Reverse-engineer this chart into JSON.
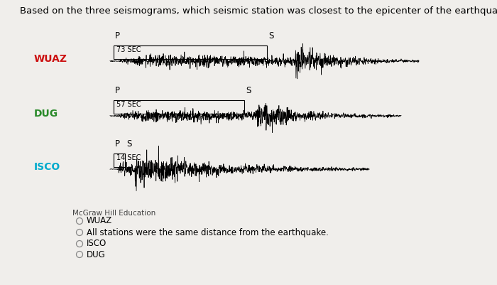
{
  "title": "Based on the three seismograms, which seismic station was closest to the epicenter of the earthquake?",
  "title_fontsize": 9.5,
  "background_color": "#f0eeeb",
  "stations": [
    "WUAZ",
    "DUG",
    "ISCO"
  ],
  "station_colors": [
    "#cc1111",
    "#2a8a2a",
    "#00aacc"
  ],
  "ps_labels": [
    "73 SEC",
    "57 SEC",
    "14 SEC"
  ],
  "attribution": "McGraw Hill Education",
  "options": [
    "WUAZ",
    "All stations were the same distance from the earthquake.",
    "ISCO",
    "DUG"
  ]
}
